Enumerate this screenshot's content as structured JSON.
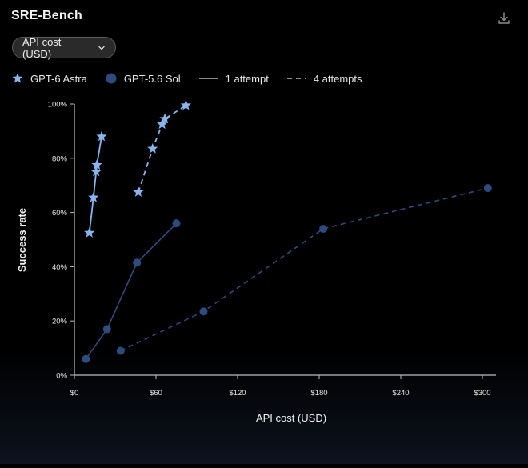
{
  "header": {
    "title": "SRE-Bench",
    "download_icon": "download-icon"
  },
  "selector": {
    "value": "API cost (USD)",
    "icon": "chevron-down-icon"
  },
  "legend": {
    "astra": "GPT-6 Astra",
    "sol": "GPT-5.6 Sol",
    "one": "1 attempt",
    "four": "4 attempts"
  },
  "colors": {
    "astra": "#8ab4f0",
    "sol": "#2f4a7e",
    "axis": "#bdbdbd",
    "text": "#e6e6e6"
  },
  "chart_data": {
    "type": "line",
    "xlabel": "API cost (USD)",
    "ylabel": "Success rate",
    "xlim": [
      0,
      310
    ],
    "ylim": [
      0,
      100
    ],
    "x_ticks": [
      0,
      60,
      120,
      180,
      240,
      300
    ],
    "x_tick_labels": [
      "$0",
      "$60",
      "$120",
      "$180",
      "$240",
      "$300"
    ],
    "y_ticks": [
      0,
      20,
      40,
      60,
      80,
      100
    ],
    "y_tick_labels": [
      "0%",
      "20%",
      "40%",
      "60%",
      "80%",
      "100%"
    ],
    "grid": false,
    "legend_position": "top-left",
    "series": [
      {
        "name": "GPT-6 Astra",
        "attempts": "1 attempt",
        "marker": "star",
        "points": [
          [
            11,
            52.5
          ],
          [
            14,
            65.5
          ],
          [
            16,
            75
          ],
          [
            16.5,
            77.5
          ],
          [
            20,
            88
          ]
        ]
      },
      {
        "name": "GPT-6 Astra",
        "attempts": "4 attempts",
        "marker": "star",
        "points": [
          [
            47,
            67.5
          ],
          [
            57.5,
            83.5
          ],
          [
            64.5,
            92.5
          ],
          [
            66.5,
            94.5
          ],
          [
            82,
            99.5
          ]
        ]
      },
      {
        "name": "GPT-5.6 Sol",
        "attempts": "1 attempt",
        "marker": "circle",
        "points": [
          [
            8.5,
            6
          ],
          [
            24,
            17
          ],
          [
            46,
            41.5
          ],
          [
            75,
            56
          ]
        ]
      },
      {
        "name": "GPT-5.6 Sol",
        "attempts": "4 attempts",
        "marker": "circle",
        "points": [
          [
            34,
            9
          ],
          [
            95,
            23.5
          ],
          [
            183,
            54
          ],
          [
            304,
            69
          ]
        ]
      }
    ]
  }
}
